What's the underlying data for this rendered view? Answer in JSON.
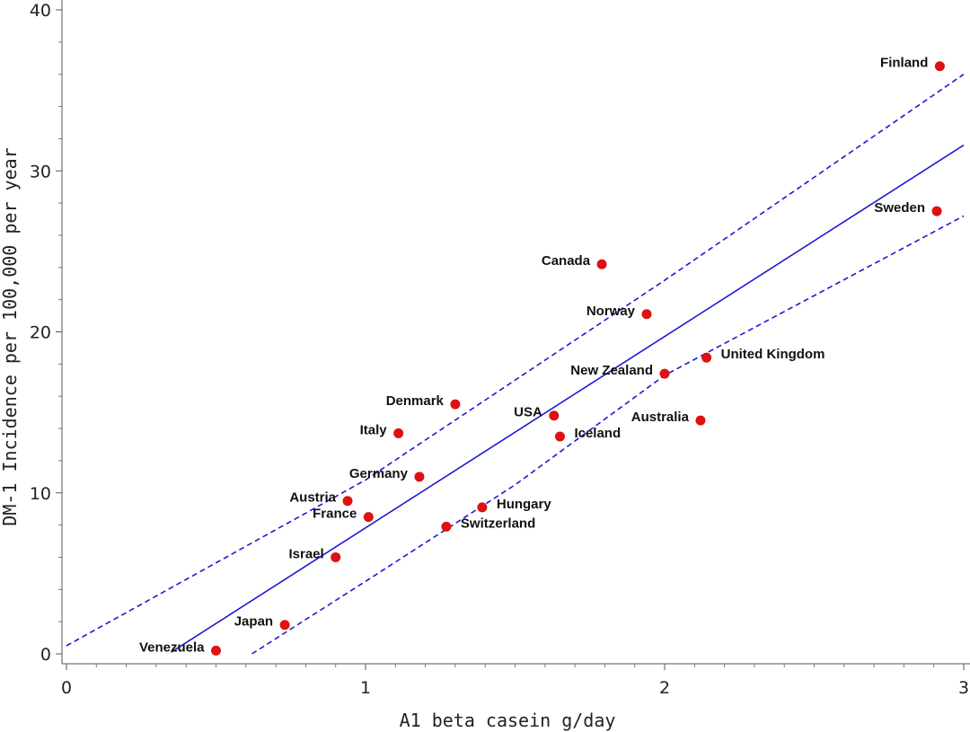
{
  "chart_data": {
    "type": "scatter",
    "xlabel": "A1 beta casein  g/day",
    "ylabel": "DM-1 Incidence per 100,000 per year",
    "xlim": [
      0,
      3
    ],
    "ylim": [
      0,
      40
    ],
    "x_ticks": [
      "0",
      "1",
      "2",
      "3"
    ],
    "y_ticks": [
      "0",
      "10",
      "20",
      "30",
      "40"
    ],
    "point_color": "#dd1111",
    "line_color": "#1a1ad4",
    "grid": false,
    "points": [
      {
        "label": "Finland",
        "x": 2.92,
        "y": 36.5,
        "label_side": "left"
      },
      {
        "label": "Sweden",
        "x": 2.91,
        "y": 27.5,
        "label_side": "left"
      },
      {
        "label": "Canada",
        "x": 1.79,
        "y": 24.2,
        "label_side": "left"
      },
      {
        "label": "Norway",
        "x": 1.94,
        "y": 21.1,
        "label_side": "left"
      },
      {
        "label": "United Kingdom",
        "x": 2.14,
        "y": 18.4,
        "label_side": "right"
      },
      {
        "label": "New Zealand",
        "x": 2.0,
        "y": 17.4,
        "label_side": "left"
      },
      {
        "label": "Denmark",
        "x": 1.3,
        "y": 15.5,
        "label_side": "left"
      },
      {
        "label": "USA",
        "x": 1.63,
        "y": 14.8,
        "label_side": "left"
      },
      {
        "label": "Australia",
        "x": 2.12,
        "y": 14.5,
        "label_side": "left"
      },
      {
        "label": "Italy",
        "x": 1.11,
        "y": 13.7,
        "label_side": "left"
      },
      {
        "label": "Iceland",
        "x": 1.65,
        "y": 13.5,
        "label_side": "right"
      },
      {
        "label": "Germany",
        "x": 1.18,
        "y": 11.0,
        "label_side": "left"
      },
      {
        "label": "Austria",
        "x": 0.94,
        "y": 9.5,
        "label_side": "left"
      },
      {
        "label": "Hungary",
        "x": 1.39,
        "y": 9.1,
        "label_side": "right"
      },
      {
        "label": "France",
        "x": 1.01,
        "y": 8.5,
        "label_side": "left"
      },
      {
        "label": "Switzerland",
        "x": 1.27,
        "y": 7.9,
        "label_side": "right"
      },
      {
        "label": "Israel",
        "x": 0.9,
        "y": 6.0,
        "label_side": "left"
      },
      {
        "label": "Japan",
        "x": 0.73,
        "y": 1.8,
        "label_side": "left"
      },
      {
        "label": "Venezuela",
        "x": 0.5,
        "y": 0.2,
        "label_side": "left"
      }
    ],
    "regression_line": {
      "x": [
        0.35,
        3.0
      ],
      "y": [
        0.1,
        31.6
      ]
    },
    "confidence_upper": {
      "x": [
        0.0,
        1.0,
        2.0,
        3.0
      ],
      "y": [
        0.5,
        10.8,
        23.2,
        36.0
      ]
    },
    "confidence_lower": {
      "x": [
        0.62,
        1.0,
        1.5,
        2.0,
        3.0
      ],
      "y": [
        0.0,
        4.5,
        10.5,
        17.3,
        27.2
      ]
    }
  }
}
